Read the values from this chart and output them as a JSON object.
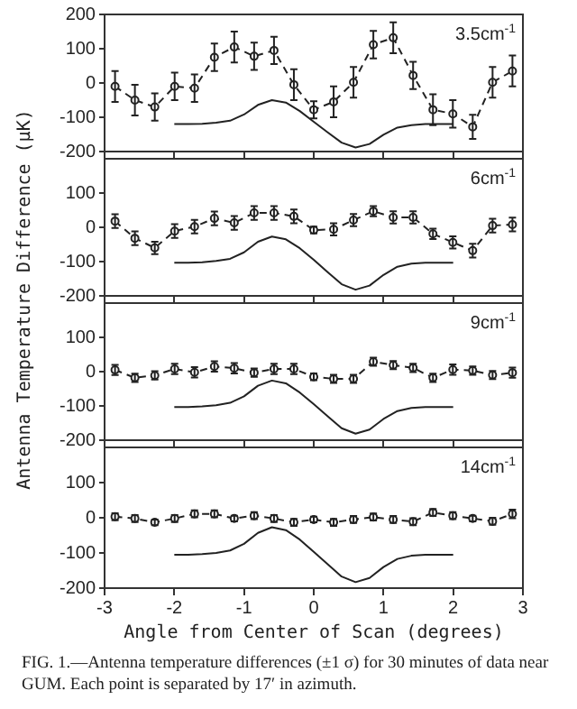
{
  "chart_data": [
    {
      "type": "line",
      "ylabel": "Antenna Temperature Difference (μK)",
      "x": [
        -2.85,
        -2.565,
        -2.28,
        -1.995,
        -1.71,
        -1.425,
        -1.14,
        -0.855,
        -0.57,
        -0.285,
        0,
        0.285,
        0.57,
        0.855,
        1.14,
        1.425,
        1.71,
        1.995,
        2.28,
        2.565,
        2.85
      ],
      "series": [
        {
          "color": "#222222",
          "marker": "circle",
          "line_style": "dashed",
          "values": [
            -10,
            -50,
            -70,
            -10,
            -15,
            75,
            105,
            78,
            95,
            -5,
            -78,
            -55,
            2,
            112,
            132,
            22,
            -78,
            -90,
            -128,
            2,
            35
          ],
          "errors": [
            45,
            45,
            40,
            40,
            40,
            40,
            45,
            40,
            40,
            45,
            25,
            45,
            45,
            40,
            45,
            40,
            45,
            40,
            35,
            45,
            45
          ]
        },
        {
          "type": "line",
          "color": "#222222",
          "marker": "none",
          "line_style": "solid",
          "x": [
            -2,
            -1.8,
            -1.6,
            -1.4,
            -1.2,
            -1,
            -0.8,
            -0.6,
            -0.4,
            -0.2,
            0,
            0.2,
            0.4,
            0.6,
            0.8,
            1,
            1.2,
            1.4,
            1.6,
            1.8,
            2
          ],
          "values": [
            -120,
            -120,
            -119,
            -116,
            -110,
            -92,
            -64,
            -50,
            -57,
            -82,
            -113,
            -144,
            -174,
            -188,
            -178,
            -151,
            -130,
            -123,
            -120,
            -120,
            -120
          ]
        }
      ],
      "xlim": [
        -3,
        3
      ],
      "xticks": [
        -3,
        -2,
        -1,
        0,
        1,
        2,
        3
      ],
      "ylim": [
        -200,
        200
      ],
      "yticks": [
        200,
        100,
        0,
        -100,
        -200
      ],
      "tick_labels": "y",
      "annotations": [
        "3.5cm$^{-1}$"
      ]
    },
    {
      "type": "line",
      "x": [
        -2.85,
        -2.565,
        -2.28,
        -1.995,
        -1.71,
        -1.425,
        -1.14,
        -0.855,
        -0.57,
        -0.285,
        0,
        0.285,
        0.57,
        0.855,
        1.14,
        1.425,
        1.71,
        1.995,
        2.28,
        2.565,
        2.85
      ],
      "series": [
        {
          "color": "#222222",
          "marker": "circle",
          "line_style": "dashed",
          "values": [
            18,
            -32,
            -60,
            -11,
            2,
            26,
            13,
            42,
            42,
            32,
            -8,
            -6,
            21,
            47,
            29,
            29,
            -19,
            -44,
            -68,
            5,
            8
          ],
          "errors": [
            20,
            20,
            18,
            20,
            20,
            20,
            20,
            20,
            20,
            20,
            10,
            18,
            18,
            15,
            18,
            18,
            15,
            18,
            20,
            20,
            20
          ]
        },
        {
          "type": "line",
          "color": "#222222",
          "marker": "none",
          "line_style": "solid",
          "x": [
            -2,
            -1.8,
            -1.6,
            -1.4,
            -1.2,
            -1,
            -0.8,
            -0.6,
            -0.4,
            -0.2,
            0,
            0.2,
            0.4,
            0.6,
            0.8,
            1,
            1.2,
            1.4,
            1.6,
            1.8,
            2
          ],
          "values": [
            -103,
            -103,
            -102,
            -98,
            -92,
            -73,
            -42,
            -27,
            -35,
            -61,
            -95,
            -131,
            -166,
            -182,
            -170,
            -139,
            -115,
            -106,
            -103,
            -103,
            -103
          ]
        }
      ],
      "xlim": [
        -3,
        3
      ],
      "xticks": [
        -3,
        -2,
        -1,
        0,
        1,
        2,
        3
      ],
      "ylim": [
        -200,
        200
      ],
      "yticks": [
        100,
        0,
        -100,
        -200
      ],
      "tick_labels": "y",
      "annotations": [
        "6cm$^{-1}$"
      ]
    },
    {
      "type": "line",
      "x": [
        -2.85,
        -2.565,
        -2.28,
        -1.995,
        -1.71,
        -1.425,
        -1.14,
        -0.855,
        -0.57,
        -0.285,
        0,
        0.285,
        0.57,
        0.855,
        1.14,
        1.425,
        1.71,
        1.995,
        2.28,
        2.565,
        2.85
      ],
      "series": [
        {
          "color": "#222222",
          "marker": "circle",
          "line_style": "dashed",
          "values": [
            5,
            -18,
            -11,
            8,
            -2,
            15,
            10,
            -3,
            8,
            8,
            -15,
            -21,
            -21,
            29,
            19,
            11,
            -18,
            6,
            3,
            -10,
            -3
          ],
          "errors": [
            15,
            12,
            12,
            15,
            15,
            15,
            15,
            12,
            15,
            15,
            10,
            12,
            12,
            12,
            12,
            12,
            12,
            15,
            12,
            12,
            15
          ]
        },
        {
          "type": "line",
          "color": "#222222",
          "marker": "none",
          "line_style": "solid",
          "x": [
            -2,
            -1.8,
            -1.6,
            -1.4,
            -1.2,
            -1,
            -0.8,
            -0.6,
            -0.4,
            -0.2,
            0,
            0.2,
            0.4,
            0.6,
            0.8,
            1,
            1.2,
            1.4,
            1.6,
            1.8,
            2
          ],
          "values": [
            -103,
            -103,
            -101,
            -98,
            -91,
            -72,
            -41,
            -26,
            -34,
            -61,
            -95,
            -130,
            -165,
            -181,
            -169,
            -138,
            -115,
            -106,
            -103,
            -103,
            -103
          ]
        }
      ],
      "xlim": [
        -3,
        3
      ],
      "xticks": [
        -3,
        -2,
        -1,
        0,
        1,
        2,
        3
      ],
      "ylim": [
        -200,
        200
      ],
      "yticks": [
        100,
        0,
        -100,
        -200
      ],
      "tick_labels": "y",
      "annotations": [
        "9cm$^{-1}$"
      ]
    },
    {
      "type": "line",
      "xlabel": "Angle from Center of Scan (degrees)",
      "x": [
        -2.85,
        -2.565,
        -2.28,
        -1.995,
        -1.71,
        -1.425,
        -1.14,
        -0.855,
        -0.57,
        -0.285,
        0,
        0.285,
        0.57,
        0.855,
        1.14,
        1.425,
        1.71,
        1.995,
        2.28,
        2.565,
        2.85
      ],
      "series": [
        {
          "color": "#222222",
          "marker": "circle",
          "line_style": "dashed",
          "values": [
            3,
            -2,
            -13,
            -2,
            11,
            11,
            -2,
            6,
            -2,
            -13,
            -5,
            -13,
            -5,
            2,
            -5,
            -11,
            15,
            6,
            -2,
            -10,
            11
          ],
          "errors": [
            10,
            10,
            8,
            10,
            10,
            10,
            8,
            10,
            10,
            10,
            8,
            10,
            10,
            10,
            10,
            10,
            10,
            10,
            8,
            10,
            12
          ]
        },
        {
          "type": "line",
          "color": "#222222",
          "marker": "none",
          "line_style": "solid",
          "x": [
            -2,
            -1.8,
            -1.6,
            -1.4,
            -1.2,
            -1,
            -0.8,
            -0.6,
            -0.4,
            -0.2,
            0,
            0.2,
            0.4,
            0.6,
            0.8,
            1,
            1.2,
            1.4,
            1.6,
            1.8,
            2
          ],
          "values": [
            -105,
            -105,
            -103,
            -100,
            -93,
            -74,
            -43,
            -27,
            -35,
            -62,
            -97,
            -132,
            -167,
            -183,
            -171,
            -140,
            -117,
            -108,
            -105,
            -105,
            -105
          ]
        }
      ],
      "xlim": [
        -3,
        3
      ],
      "xticks": [
        -3,
        -2,
        -1,
        0,
        1,
        2,
        3
      ],
      "ylim": [
        -200,
        200
      ],
      "yticks": [
        100,
        0,
        -100,
        -200
      ],
      "annotations": [
        "14cm$^{-1}$",
        "FIG. 1.—Antenna temperature differences (±1 σ) for 30 minutes of data near GUM. Each point is separated by 17′ in azimuth."
      ]
    }
  ]
}
